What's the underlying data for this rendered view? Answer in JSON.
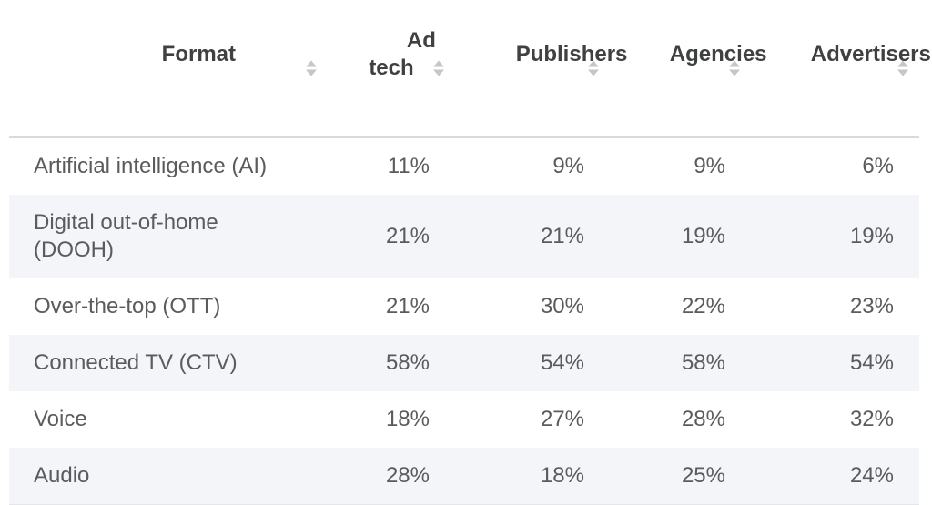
{
  "table": {
    "columns": [
      {
        "label": "Format"
      },
      {
        "label": "Ad\ntech"
      },
      {
        "label": "Publishers"
      },
      {
        "label": "Agencies"
      },
      {
        "label": "Advertisers"
      }
    ],
    "rows": [
      {
        "format": "Artificial intelligence (AI)",
        "values": [
          "11%",
          "9%",
          "9%",
          "6%"
        ]
      },
      {
        "format": "Digital out-of-home\n(DOOH)",
        "values": [
          "21%",
          "21%",
          "19%",
          "19%"
        ]
      },
      {
        "format": "Over-the-top (OTT)",
        "values": [
          "21%",
          "30%",
          "22%",
          "23%"
        ]
      },
      {
        "format": "Connected TV (CTV)",
        "values": [
          "58%",
          "54%",
          "58%",
          "54%"
        ]
      },
      {
        "format": "Voice",
        "values": [
          "18%",
          "27%",
          "28%",
          "32%"
        ]
      },
      {
        "format": "Audio",
        "values": [
          "28%",
          "18%",
          "25%",
          "24%"
        ]
      }
    ],
    "colors": {
      "header_text": "#3f4040",
      "body_text": "#5a5b5d",
      "stripe_background": "#f3f5f8",
      "header_border": "#dadada",
      "sort_arrow": "#c6c6c6"
    }
  },
  "chart_data": {
    "type": "table",
    "title": "",
    "unit": "%",
    "columns": [
      "Format",
      "Ad tech",
      "Publishers",
      "Agencies",
      "Advertisers"
    ],
    "categories": [
      "Artificial intelligence (AI)",
      "Digital out-of-home (DOOH)",
      "Over-the-top (OTT)",
      "Connected TV (CTV)",
      "Voice",
      "Audio"
    ],
    "series": [
      {
        "name": "Ad tech",
        "values": [
          11,
          21,
          21,
          58,
          18,
          28
        ]
      },
      {
        "name": "Publishers",
        "values": [
          9,
          21,
          30,
          54,
          27,
          18
        ]
      },
      {
        "name": "Agencies",
        "values": [
          9,
          19,
          22,
          58,
          28,
          25
        ]
      },
      {
        "name": "Advertisers",
        "values": [
          6,
          19,
          23,
          54,
          32,
          24
        ]
      }
    ],
    "layout_hints": {
      "sortable_columns": true,
      "striped_rows": true,
      "value_alignment": "right",
      "first_column_alignment": "left"
    }
  }
}
